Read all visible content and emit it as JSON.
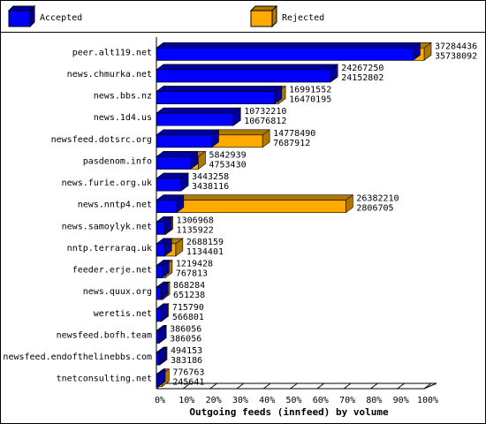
{
  "chart_data": {
    "type": "bar3d",
    "orientation": "horizontal",
    "overlap": true,
    "xlabel": "Outgoing feeds (innfeed) by volume",
    "categories": [
      "peer.alt119.net",
      "news.chmurka.net",
      "news.bbs.nz",
      "news.1d4.us",
      "newsfeed.dotsrc.org",
      "pasdenom.info",
      "news.furie.org.uk",
      "news.nntp4.net",
      "news.samoylyk.net",
      "nntp.terraraq.uk",
      "feeder.erje.net",
      "news.quux.org",
      "weretis.net",
      "newsfeed.bofh.team",
      "newsfeed.endofthelinebbs.com",
      "tnetconsulting.net"
    ],
    "series": [
      {
        "name": "Accepted",
        "color": "#0000ff",
        "side": "#00009c",
        "values": [
          35738092,
          24152802,
          16470195,
          10676812,
          7687912,
          4753430,
          3438116,
          2806705,
          1135922,
          1134401,
          767813,
          651238,
          566801,
          386056,
          383186,
          245641
        ]
      },
      {
        "name": "Rejected",
        "color": "#ffaa00",
        "side": "#b07800",
        "values": [
          37284436,
          24267250,
          16991552,
          10732210,
          14778490,
          5842939,
          3443258,
          26382210,
          1306968,
          2688159,
          1219428,
          868284,
          715790,
          386056,
          494153,
          776763
        ]
      }
    ],
    "xlim": [
      0,
      37284436
    ],
    "xticks": [
      {
        "value": 0,
        "label": "0%"
      },
      {
        "value": 3728443.6,
        "label": "10%"
      },
      {
        "value": 7456887.2,
        "label": "20%"
      },
      {
        "value": 11185330.8,
        "label": "30%"
      },
      {
        "value": 14913774.4,
        "label": "40%"
      },
      {
        "value": 18642218,
        "label": "50%"
      },
      {
        "value": 22370661.6,
        "label": "60%"
      },
      {
        "value": 26099105.2,
        "label": "70%"
      },
      {
        "value": 29827548.8,
        "label": "80%"
      },
      {
        "value": 33555992.4,
        "label": "90%"
      },
      {
        "value": 37284436,
        "label": "100%"
      }
    ]
  }
}
